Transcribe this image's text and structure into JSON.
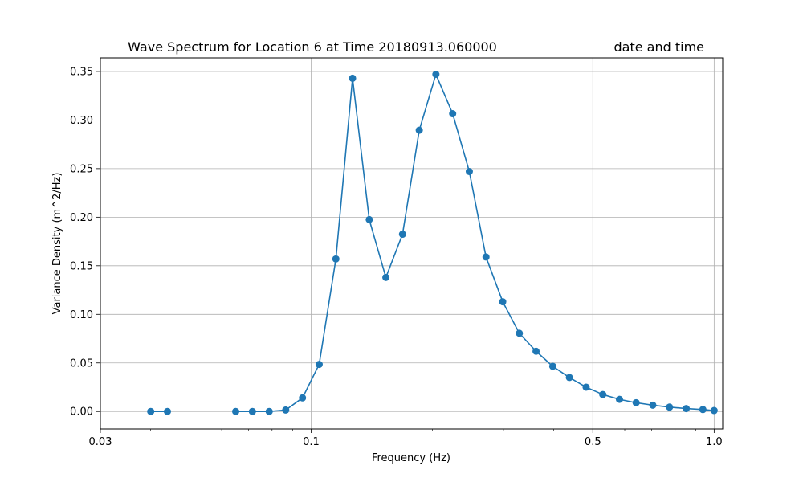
{
  "chart_data": {
    "type": "line",
    "title": "Wave Spectrum for Location 6 at Time 20180913.060000",
    "title_right": "date and time",
    "xlabel": "Frequency (Hz)",
    "ylabel": "Variance Density (m^2/Hz)",
    "xscale": "log",
    "xlim": [
      0.03,
      1.05
    ],
    "ylim": [
      -0.018,
      0.364
    ],
    "xticks": [
      0.03,
      0.1,
      0.5,
      1.0
    ],
    "xtick_labels": [
      "0.03",
      "0.1",
      "0.5",
      "1.0"
    ],
    "yticks": [
      0.0,
      0.05,
      0.1,
      0.15,
      0.2,
      0.25,
      0.3,
      0.35
    ],
    "ytick_labels": [
      "0.00",
      "0.05",
      "0.10",
      "0.15",
      "0.20",
      "0.25",
      "0.30",
      "0.35"
    ],
    "grid": true,
    "series_color": "#1f77b4",
    "segments": [
      {
        "x": [
          0.04,
          0.044
        ],
        "y": [
          0.0,
          0.0
        ]
      },
      {
        "x": [
          0.065,
          0.0715,
          0.0787,
          0.0865,
          0.0952,
          0.1047,
          0.1152,
          0.1267,
          0.1394,
          0.1533,
          0.1686,
          0.1855,
          0.204,
          0.2245,
          0.2469,
          0.2716,
          0.2988,
          0.3286,
          0.3615,
          0.3977,
          0.4374,
          0.4812,
          0.5293,
          0.5822,
          0.6404,
          0.7045,
          0.7749,
          0.8524,
          0.9377,
          1.0
        ],
        "y": [
          0.0,
          0.0,
          0.0,
          0.0015,
          0.014,
          0.0485,
          0.157,
          0.343,
          0.1975,
          0.138,
          0.1825,
          0.2895,
          0.347,
          0.3065,
          0.247,
          0.159,
          0.113,
          0.0805,
          0.062,
          0.0465,
          0.035,
          0.025,
          0.0175,
          0.0125,
          0.009,
          0.0065,
          0.0045,
          0.003,
          0.002,
          0.001
        ]
      }
    ]
  }
}
